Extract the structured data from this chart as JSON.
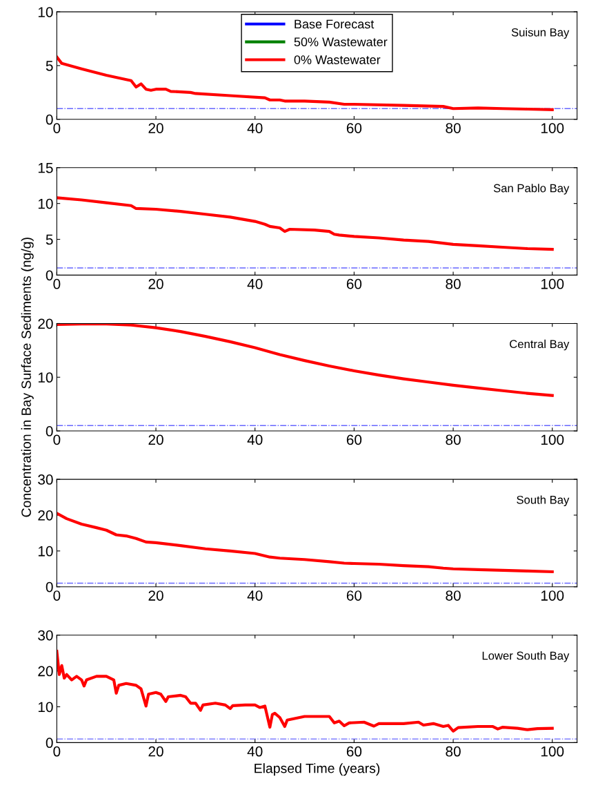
{
  "chart_data": [
    {
      "type": "line",
      "title": "Suisun Bay",
      "xlim": [
        0,
        105
      ],
      "xticks": [
        0,
        20,
        40,
        60,
        80,
        100
      ],
      "ylim": [
        0,
        10
      ],
      "yticks": [
        0,
        5,
        10
      ],
      "legend": "top",
      "grid": false,
      "x": [
        0,
        1,
        5,
        10,
        15,
        16,
        17,
        18,
        19,
        20,
        22,
        23,
        27,
        28,
        35,
        42,
        43,
        45,
        46,
        50,
        55,
        58,
        60,
        70,
        78,
        80,
        85,
        90,
        95,
        100
      ],
      "series": [
        {
          "name": "Base Forecast",
          "color": "#0000ff",
          "values": [
            null,
            null,
            null,
            null,
            null,
            null,
            null,
            null,
            null,
            null,
            null,
            null,
            null,
            null,
            null,
            null,
            null,
            null,
            null,
            null,
            null,
            null,
            null,
            null,
            null,
            null,
            null,
            null,
            null,
            null
          ]
        },
        {
          "name": "50% Wastewater",
          "color": "#008000",
          "values": [
            null,
            null,
            null,
            null,
            null,
            null,
            null,
            null,
            null,
            null,
            null,
            null,
            null,
            null,
            null,
            null,
            null,
            null,
            null,
            null,
            null,
            null,
            null,
            null,
            null,
            null,
            null,
            null,
            null,
            null
          ]
        },
        {
          "name": "0% Wastewater",
          "color": "#ff0000",
          "values": [
            5.8,
            5.2,
            4.7,
            4.1,
            3.6,
            3.0,
            3.3,
            2.8,
            2.7,
            2.8,
            2.8,
            2.6,
            2.5,
            2.4,
            2.2,
            2.0,
            1.8,
            1.8,
            1.7,
            1.7,
            1.6,
            1.4,
            1.4,
            1.3,
            1.2,
            1.0,
            1.05,
            1.0,
            0.95,
            0.9
          ]
        }
      ],
      "ref_lines": [
        {
          "axis": "y",
          "value": 1,
          "color": "#6666ff",
          "line_style": "dashdot"
        }
      ]
    },
    {
      "type": "line",
      "title": "San Pablo Bay",
      "xlim": [
        0,
        105
      ],
      "xticks": [
        0,
        20,
        40,
        60,
        80,
        100
      ],
      "ylim": [
        0,
        15
      ],
      "yticks": [
        0,
        5,
        10,
        15
      ],
      "grid": false,
      "x": [
        0,
        5,
        10,
        15,
        16,
        20,
        25,
        30,
        35,
        40,
        42,
        43,
        45,
        46,
        47,
        52,
        55,
        56,
        57,
        60,
        65,
        70,
        75,
        80,
        85,
        90,
        95,
        100
      ],
      "series": [
        {
          "color": "#ff0000",
          "values": [
            10.8,
            10.5,
            10.1,
            9.7,
            9.3,
            9.2,
            8.9,
            8.5,
            8.1,
            7.5,
            7.1,
            6.8,
            6.6,
            6.1,
            6.4,
            6.3,
            6.1,
            5.7,
            5.6,
            5.4,
            5.2,
            4.9,
            4.7,
            4.3,
            4.1,
            3.9,
            3.7,
            3.6
          ]
        }
      ],
      "ref_lines": [
        {
          "axis": "y",
          "value": 1,
          "color": "#6666ff",
          "line_style": "dashdot"
        }
      ]
    },
    {
      "type": "line",
      "title": "Central Bay",
      "ylabel": "Concentration in Bay Surface Sediments (ng/g)",
      "xlim": [
        0,
        105
      ],
      "xticks": [
        0,
        20,
        40,
        60,
        80,
        100
      ],
      "ylim": [
        0,
        20
      ],
      "yticks": [
        0,
        10,
        20
      ],
      "grid": false,
      "x": [
        0,
        5,
        10,
        15,
        20,
        25,
        30,
        35,
        40,
        45,
        50,
        55,
        60,
        65,
        70,
        75,
        80,
        85,
        90,
        95,
        100
      ],
      "series": [
        {
          "color": "#ff0000",
          "values": [
            19.8,
            19.9,
            19.9,
            19.7,
            19.2,
            18.5,
            17.6,
            16.6,
            15.5,
            14.2,
            13.1,
            12.1,
            11.2,
            10.4,
            9.7,
            9.1,
            8.5,
            8.0,
            7.5,
            7.0,
            6.6
          ]
        }
      ],
      "ref_lines": [
        {
          "axis": "y",
          "value": 1,
          "color": "#6666ff",
          "line_style": "dashdot"
        }
      ]
    },
    {
      "type": "line",
      "title": "South Bay",
      "xlim": [
        0,
        105
      ],
      "xticks": [
        0,
        20,
        40,
        60,
        80,
        100
      ],
      "ylim": [
        0,
        30
      ],
      "yticks": [
        0,
        10,
        20,
        30
      ],
      "grid": false,
      "x": [
        0,
        2,
        5,
        8,
        10,
        12,
        14,
        16,
        18,
        20,
        25,
        30,
        35,
        40,
        43,
        45,
        50,
        55,
        58,
        60,
        65,
        70,
        75,
        78,
        80,
        85,
        90,
        95,
        100
      ],
      "series": [
        {
          "color": "#ff0000",
          "values": [
            20.5,
            19,
            17.5,
            16.5,
            15.8,
            14.5,
            14.2,
            13.5,
            12.5,
            12.3,
            11.5,
            10.6,
            10.0,
            9.3,
            8.3,
            8.0,
            7.6,
            7.0,
            6.6,
            6.5,
            6.3,
            5.9,
            5.6,
            5.2,
            5.0,
            4.8,
            4.6,
            4.4,
            4.2
          ]
        }
      ],
      "ref_lines": [
        {
          "axis": "y",
          "value": 1,
          "color": "#6666ff",
          "line_style": "dashdot"
        }
      ]
    },
    {
      "type": "line",
      "title": "Lower South Bay",
      "xlabel": "Elapsed Time (years)",
      "xlim": [
        0,
        105
      ],
      "xticks": [
        0,
        20,
        40,
        60,
        80,
        100
      ],
      "ylim": [
        0,
        30
      ],
      "yticks": [
        0,
        10,
        20,
        30
      ],
      "grid": false,
      "x": [
        0,
        0.5,
        1,
        1.5,
        2,
        3,
        4,
        5,
        5.5,
        6,
        8,
        10,
        11.5,
        12,
        12.5,
        14,
        16,
        17,
        18,
        18.5,
        20,
        21,
        22,
        22.5,
        25,
        26,
        27,
        28,
        29,
        29.5,
        32,
        34,
        35,
        35.5,
        38,
        40,
        41,
        42,
        43,
        43.5,
        44,
        45,
        46,
        46.5,
        50,
        55,
        56,
        57,
        58,
        59,
        62,
        64,
        65,
        70,
        73,
        74,
        76,
        78,
        79,
        80,
        81,
        85,
        88,
        89,
        90,
        93,
        95,
        97,
        100
      ],
      "series": [
        {
          "color": "#ff0000",
          "values": [
            25.5,
            19,
            21.5,
            18,
            19,
            17.5,
            18.5,
            17.5,
            15.8,
            17.5,
            18.5,
            18.5,
            17.5,
            13.8,
            16,
            16.5,
            16,
            15,
            10.2,
            13.5,
            14,
            13.5,
            11.5,
            12.8,
            13.2,
            12.8,
            11,
            11,
            9,
            10.5,
            11,
            10.5,
            9.5,
            10.3,
            10.5,
            10.5,
            9.8,
            10.2,
            4.3,
            7.8,
            8.2,
            7,
            4.5,
            6.3,
            7.3,
            7.3,
            5.5,
            6,
            4.7,
            5.5,
            5.7,
            4.6,
            5.3,
            5.3,
            5.7,
            4.9,
            5.3,
            4.5,
            4.8,
            3.2,
            4.2,
            4.5,
            4.5,
            3.8,
            4.3,
            4.0,
            3.6,
            3.9,
            4.0
          ]
        }
      ],
      "ref_lines": [
        {
          "axis": "y",
          "value": 1,
          "color": "#6666ff",
          "line_style": "dashdot"
        }
      ]
    }
  ]
}
